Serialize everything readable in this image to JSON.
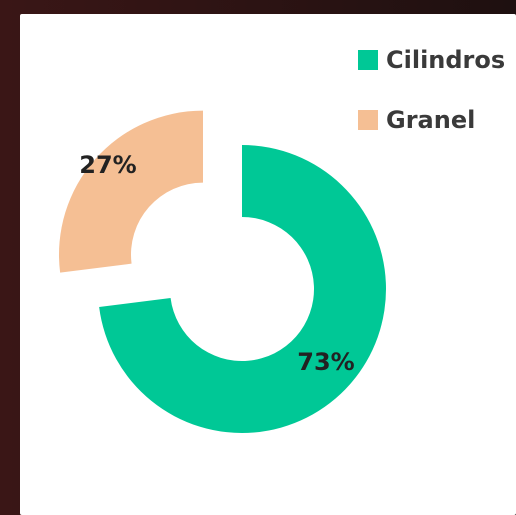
{
  "chart_data": {
    "type": "pie",
    "subtype": "donut-exploded",
    "title": "",
    "labels": [
      "Cilindros",
      "Granel"
    ],
    "values": [
      73,
      27
    ],
    "unit": "%",
    "data_labels": [
      "73%",
      "27%"
    ],
    "colors": [
      "#00c896",
      "#f5bf94"
    ],
    "legend_position": "top-right"
  }
}
